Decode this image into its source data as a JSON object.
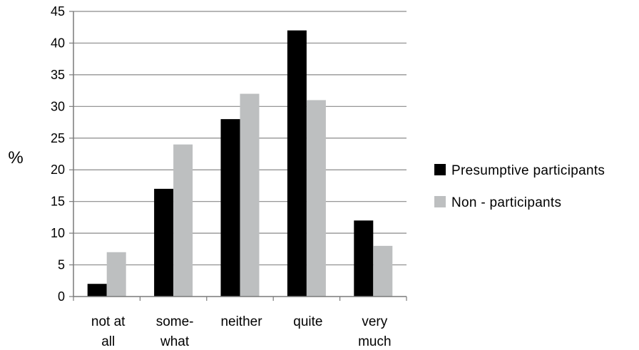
{
  "chart_data": {
    "type": "bar",
    "categories": [
      [
        "not at",
        "all"
      ],
      [
        "some-",
        "what"
      ],
      [
        "neither"
      ],
      [
        "quite"
      ],
      [
        "very",
        "much"
      ]
    ],
    "series": [
      {
        "name": "Presumptive participants",
        "color": "#000000",
        "values": [
          2,
          17,
          28,
          42,
          12
        ]
      },
      {
        "name": "Non -  participants",
        "color": "#bdbfc0",
        "values": [
          7,
          24,
          32,
          31,
          8
        ]
      }
    ],
    "ylabel": "%",
    "ylim": [
      0,
      45
    ],
    "yticks": [
      0,
      5,
      10,
      15,
      20,
      25,
      30,
      35,
      40,
      45
    ],
    "grid": true,
    "legend": "right"
  }
}
